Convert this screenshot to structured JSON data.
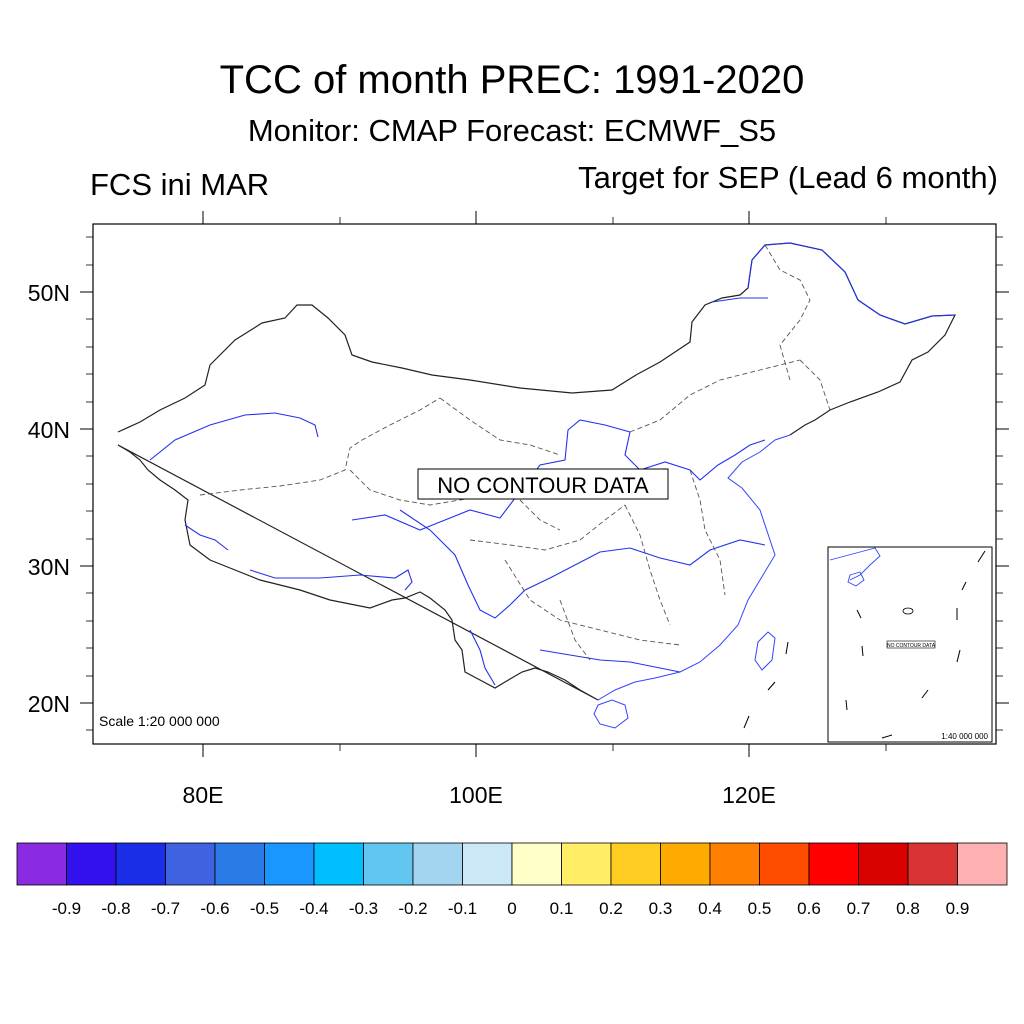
{
  "figure": {
    "title": "TCC of month PREC: 1991-2020",
    "subtitle": "Monitor: CMAP   Forecast: ECMWF_S5",
    "left_label": "FCS ini MAR",
    "right_label": "Target for SEP (Lead 6 month)"
  },
  "map": {
    "lat_labels": [
      "50N",
      "40N",
      "30N",
      "20N"
    ],
    "lon_labels": [
      "80E",
      "100E",
      "120E"
    ],
    "no_data_text": "NO CONTOUR DATA",
    "scale_text": "Scale 1:20 000 000"
  },
  "inset": {
    "no_data_text": "NO CONTOUR DATA",
    "scale_text": "1:40 000 000"
  },
  "colorbar": {
    "colors": [
      "#8a2be2",
      "#3311ee",
      "#1a2ee8",
      "#3e62e0",
      "#2a7ae8",
      "#1a97ff",
      "#00bfff",
      "#62c6f0",
      "#a3d5f0",
      "#cce8f8",
      "#ffffc8",
      "#ffee66",
      "#ffcc22",
      "#ffaa00",
      "#ff8000",
      "#ff4d00",
      "#ff0000",
      "#d90000",
      "#d93333",
      "#ffb0b0"
    ],
    "labels": [
      "-0.9",
      "-0.8",
      "-0.7",
      "-0.6",
      "-0.5",
      "-0.4",
      "-0.3",
      "-0.2",
      "-0.1",
      "0",
      "0.1",
      "0.2",
      "0.3",
      "0.4",
      "0.5",
      "0.6",
      "0.7",
      "0.8",
      "0.9"
    ]
  }
}
